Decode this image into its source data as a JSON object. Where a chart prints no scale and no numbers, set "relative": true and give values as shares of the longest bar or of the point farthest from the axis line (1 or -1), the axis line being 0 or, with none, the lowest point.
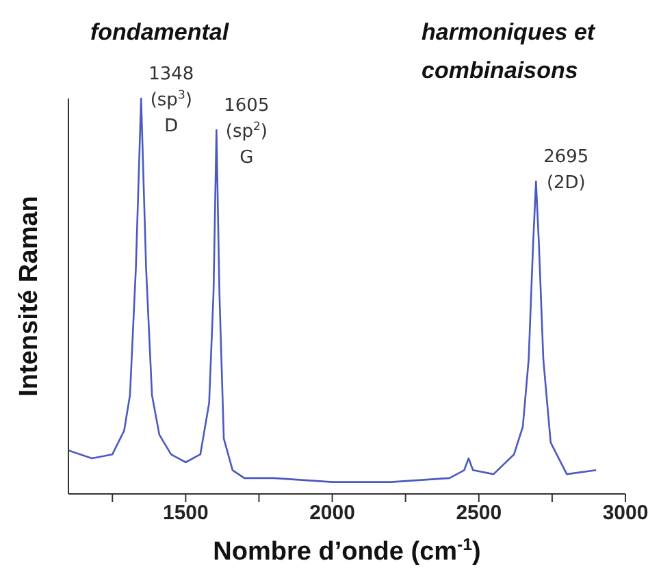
{
  "chart_data": {
    "type": "line",
    "relative": true,
    "xlabel": "Nombre d’onde (cm$^{-1}$)",
    "ylabel": "Intensité Raman",
    "xlim": [
      1100,
      3000
    ],
    "xticks": [
      {
        "value": 1250,
        "label": null
      },
      1500,
      {
        "value": 1750,
        "label": null
      },
      2000,
      {
        "value": 2250,
        "label": null
      },
      2500,
      {
        "value": 2750,
        "label": null
      },
      3000
    ],
    "marker": "none",
    "line_style": "solid",
    "series": [
      {
        "color": "#4a5ac0",
        "x": [
          1100,
          1180,
          1250,
          1290,
          1310,
          1330,
          1348,
          1365,
          1385,
          1410,
          1450,
          1500,
          1550,
          1580,
          1595,
          1605,
          1615,
          1630,
          1660,
          1700,
          1800,
          2000,
          2200,
          2400,
          2450,
          2465,
          2480,
          2550,
          2620,
          2650,
          2670,
          2685,
          2695,
          2705,
          2720,
          2745,
          2800,
          2900
        ],
        "values": [
          0.11,
          0.09,
          0.1,
          0.16,
          0.25,
          0.57,
          1,
          0.57,
          0.25,
          0.15,
          0.1,
          0.08,
          0.1,
          0.23,
          0.51,
          0.92,
          0.51,
          0.14,
          0.06,
          0.04,
          0.04,
          0.03,
          0.03,
          0.04,
          0.06,
          0.09,
          0.06,
          0.05,
          0.1,
          0.17,
          0.34,
          0.63,
          0.79,
          0.63,
          0.34,
          0.13,
          0.05,
          0.06
        ]
      }
    ],
    "annotations": [
      "fondamental",
      "harmoniques et\ncombinaisons",
      {
        "text": "1348\n(sp$^{3}$)\nD",
        "x": 1348,
        "y": 1
      },
      {
        "text": "1605\n(sp$^{2}$)\nG",
        "x": 1605,
        "y": 0.92
      },
      {
        "text": "2695\n(2D)",
        "x": 2695,
        "y": 0.79
      }
    ]
  }
}
